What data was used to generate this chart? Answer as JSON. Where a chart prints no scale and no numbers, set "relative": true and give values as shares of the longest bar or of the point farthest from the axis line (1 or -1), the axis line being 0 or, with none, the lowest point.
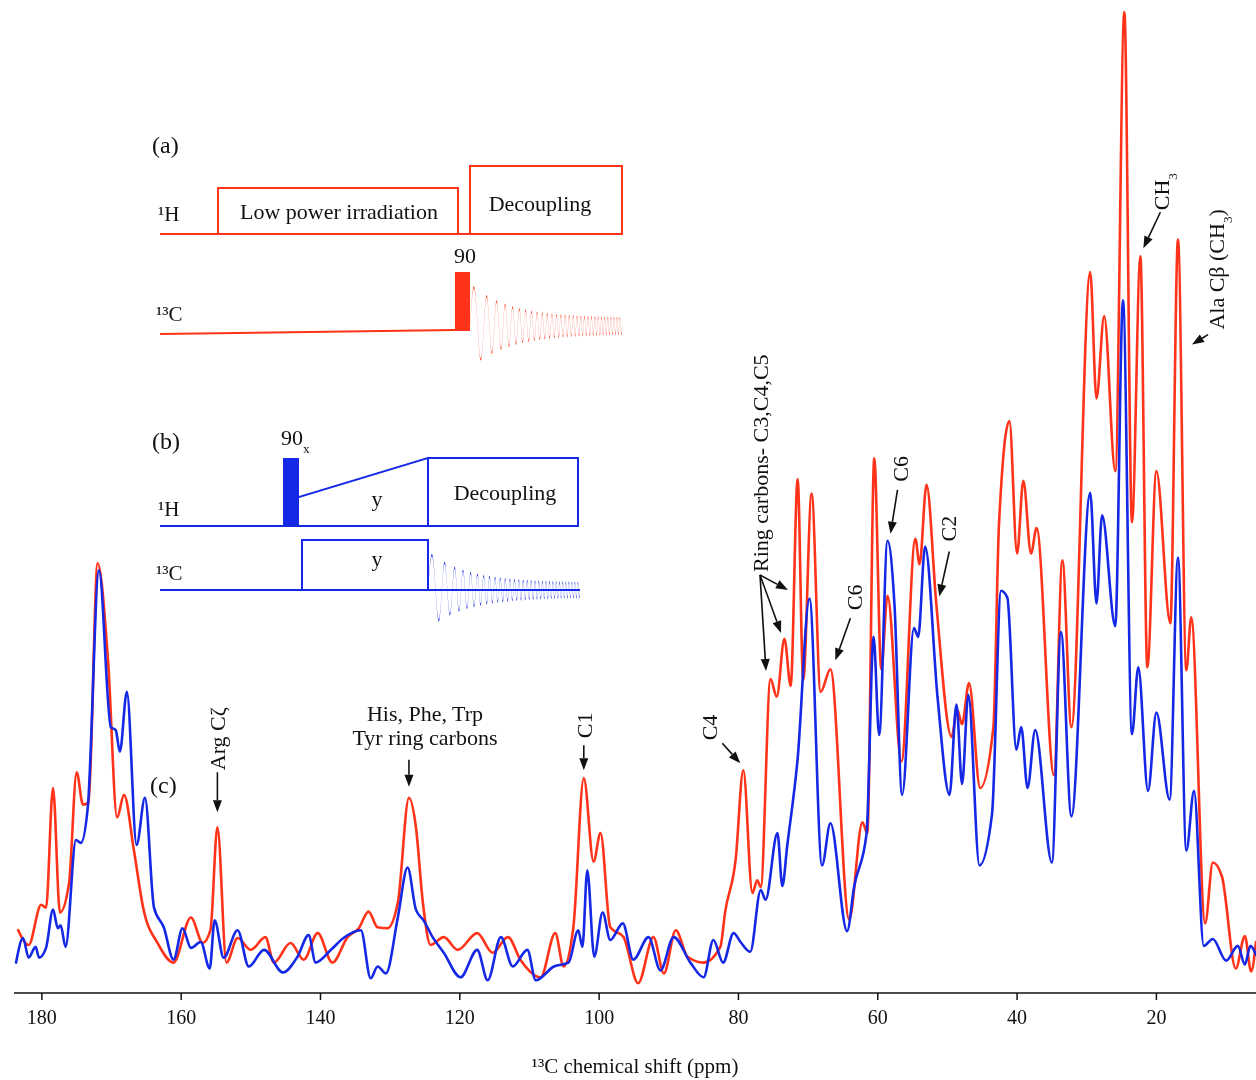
{
  "chart_data": {
    "type": "line",
    "relative": true,
    "xlabel": "¹³C chemical shift (ppm)",
    "xlim": [
      184,
      5.7
    ],
    "xticks": [
      180,
      160,
      140,
      120,
      100,
      80,
      60,
      40,
      20
    ],
    "grid": false,
    "line_style": "solid",
    "marker": "none",
    "series": [
      {
        "color": "#ff3319",
        "x": [
          183.4,
          181.9,
          180.1,
          179.4,
          178.4,
          177.4,
          176.1,
          175.0,
          174.1,
          173.3,
          172.0,
          170.5,
          169.2,
          168.2,
          166.8,
          165.4,
          163.4,
          161.1,
          158.6,
          156.9,
          155.8,
          154.8,
          153.5,
          151.9,
          150.0,
          147.9,
          146.7,
          144.3,
          142.4,
          140.4,
          138.3,
          136.1,
          134.5,
          133.1,
          131.8,
          130.4,
          128.9,
          127.3,
          126.3,
          125.3,
          124.2,
          122.3,
          120.3,
          117.5,
          115.3,
          113.1,
          111.3,
          108.4,
          106.3,
          105.1,
          103.7,
          102.2,
          100.8,
          99.8,
          98.4,
          96.5,
          94.4,
          92.2,
          90.7,
          89.0,
          87.3,
          85.0,
          82.6,
          81.9,
          80.4,
          79.3,
          78.0,
          77.3,
          76.8,
          75.4,
          74.5,
          73.4,
          72.5,
          71.5,
          70.7,
          69.5,
          68.2,
          66.8,
          64.1,
          62.2,
          61.5,
          60.5,
          59.5,
          58.6,
          56.6,
          54.6,
          54.0,
          53.0,
          51.6,
          49.4,
          48.6,
          47.9,
          46.9,
          45.3,
          43.4,
          42.6,
          41.1,
          40.0,
          39.1,
          38.0,
          37.2,
          34.7,
          33.5,
          32.2,
          29.5,
          28.6,
          27.5,
          25.9,
          24.6,
          23.5,
          22.3,
          21.3,
          20.0,
          18.0,
          16.9,
          15.7,
          15.0,
          13.0,
          11.9,
          10.6,
          8.6,
          7.3,
          6.4,
          5.7
        ],
        "values": [
          0.064,
          0.049,
          0.09,
          0.087,
          0.209,
          0.082,
          0.112,
          0.225,
          0.192,
          0.194,
          0.438,
          0.339,
          0.179,
          0.202,
          0.146,
          0.085,
          0.051,
          0.031,
          0.077,
          0.051,
          0.064,
          0.169,
          0.031,
          0.056,
          0.044,
          0.057,
          0.031,
          0.051,
          0.034,
          0.061,
          0.031,
          0.057,
          0.066,
          0.083,
          0.067,
          0.066,
          0.092,
          0.199,
          0.169,
          0.092,
          0.049,
          0.057,
          0.044,
          0.061,
          0.041,
          0.057,
          0.034,
          0.016,
          0.061,
          0.027,
          0.067,
          0.219,
          0.134,
          0.163,
          0.067,
          0.057,
          0.01,
          0.057,
          0.02,
          0.064,
          0.037,
          0.031,
          0.047,
          0.083,
          0.136,
          0.227,
          0.102,
          0.115,
          0.108,
          0.32,
          0.302,
          0.361,
          0.313,
          0.524,
          0.319,
          0.509,
          0.307,
          0.33,
          0.075,
          0.174,
          0.163,
          0.545,
          0.33,
          0.405,
          0.236,
          0.463,
          0.437,
          0.518,
          0.397,
          0.261,
          0.289,
          0.274,
          0.316,
          0.209,
          0.271,
          0.477,
          0.583,
          0.448,
          0.522,
          0.448,
          0.474,
          0.222,
          0.441,
          0.271,
          0.735,
          0.606,
          0.69,
          0.532,
          1,
          0.48,
          0.751,
          0.332,
          0.532,
          0.377,
          0.768,
          0.329,
          0.383,
          0.071,
          0.133,
          0.119,
          0.025,
          0.058,
          0.022,
          0.052
        ]
      },
      {
        "color": "#1428e6",
        "x": [
          183.7,
          182.7,
          181.9,
          180.9,
          180.4,
          179.4,
          178.4,
          177.7,
          177.3,
          176.6,
          175.1,
          174.4,
          173.4,
          171.8,
          170.1,
          169.4,
          168.8,
          167.8,
          166.4,
          165.2,
          163.9,
          162.5,
          161.1,
          159.8,
          158.6,
          157.2,
          155.9,
          155.2,
          153.9,
          151.9,
          150.3,
          148.1,
          145.4,
          143.3,
          141.7,
          140.7,
          138.5,
          136.7,
          134.2,
          132.8,
          131.8,
          130.6,
          128.9,
          127.5,
          126.3,
          125.2,
          123.9,
          122.3,
          119.9,
          117.5,
          116.0,
          114.1,
          112.4,
          110.3,
          109.1,
          106.5,
          104.4,
          103.0,
          102.4,
          101.7,
          100.7,
          99.5,
          98.4,
          96.6,
          95.1,
          92.9,
          91.2,
          89.3,
          86.9,
          85.0,
          83.6,
          82.2,
          80.7,
          79.7,
          78.3,
          76.8,
          76.1,
          74.4,
          73.7,
          73.0,
          71.5,
          69.8,
          68.0,
          66.8,
          64.4,
          63.4,
          61.6,
          60.6,
          59.8,
          58.6,
          57.6,
          56.5,
          54.8,
          54.2,
          53.2,
          51.4,
          49.7,
          48.7,
          47.9,
          47.0,
          45.4,
          43.6,
          42.3,
          41.4,
          40.1,
          39.4,
          38.5,
          37.4,
          35.0,
          33.7,
          32.2,
          29.5,
          28.6,
          27.8,
          25.9,
          24.8,
          23.5,
          22.6,
          21.2,
          20.0,
          18.1,
          16.9,
          15.7,
          14.6,
          13.2,
          11.9,
          10.0,
          8.3,
          7.3,
          6.5,
          5.7
        ],
        "values": [
          0.031,
          0.056,
          0.036,
          0.047,
          0.036,
          0.046,
          0.085,
          0.066,
          0.069,
          0.047,
          0.156,
          0.153,
          0.19,
          0.431,
          0.271,
          0.268,
          0.246,
          0.307,
          0.151,
          0.199,
          0.087,
          0.067,
          0.034,
          0.066,
          0.046,
          0.052,
          0.025,
          0.074,
          0.036,
          0.064,
          0.027,
          0.044,
          0.021,
          0.037,
          0.059,
          0.031,
          0.044,
          0.056,
          0.064,
          0.015,
          0.027,
          0.02,
          0.077,
          0.128,
          0.085,
          0.074,
          0.057,
          0.041,
          0.016,
          0.044,
          0.013,
          0.057,
          0.027,
          0.044,
          0.013,
          0.027,
          0.031,
          0.064,
          0.047,
          0.125,
          0.037,
          0.082,
          0.054,
          0.071,
          0.034,
          0.057,
          0.023,
          0.057,
          0.031,
          0.016,
          0.054,
          0.031,
          0.061,
          0.052,
          0.042,
          0.105,
          0.095,
          0.163,
          0.109,
          0.15,
          0.239,
          0.402,
          0.13,
          0.173,
          0.063,
          0.108,
          0.163,
          0.363,
          0.263,
          0.461,
          0.396,
          0.202,
          0.372,
          0.363,
          0.455,
          0.3,
          0.202,
          0.294,
          0.213,
          0.304,
          0.13,
          0.182,
          0.41,
          0.403,
          0.248,
          0.271,
          0.209,
          0.268,
          0.133,
          0.368,
          0.18,
          0.51,
          0.397,
          0.487,
          0.374,
          0.706,
          0.264,
          0.332,
          0.206,
          0.286,
          0.197,
          0.444,
          0.145,
          0.206,
          0.048,
          0.055,
          0.033,
          0.048,
          0.029,
          0.048,
          0.039
        ]
      }
    ],
    "annotations": [
      "(a)",
      "¹H",
      "Low power irradiation",
      "Decoupling",
      "90",
      "¹³C",
      "(b)",
      "90$_{x}$",
      "¹H",
      "y",
      "Decoupling",
      "¹³C",
      "y",
      "(c)",
      {
        "text": "Arg Cζ",
        "x": 154.8,
        "y": 0.169
      },
      {
        "text": "His, Phe, Trp\nTyr ring carbons",
        "x": 127.3,
        "y": 0.199
      },
      {
        "text": "C1",
        "x": 102.2,
        "y": 0.219
      },
      {
        "text": "C4",
        "x": 79.3,
        "y": 0.227
      },
      "Ring carbons- C3,C4,C5",
      {
        "text": "C6",
        "x": 66.8,
        "y": 0.33
      },
      {
        "text": "C6",
        "x": 58.6,
        "y": 0.461
      },
      {
        "text": "C2",
        "x": 51.6,
        "y": 0.397
      },
      {
        "text": "CH$_{3}$",
        "x": 22.3,
        "y": 0.751
      },
      {
        "text": "Ala Cβ (CH$_{3}$)",
        "x": 16.9,
        "y": 0.768
      }
    ]
  }
}
